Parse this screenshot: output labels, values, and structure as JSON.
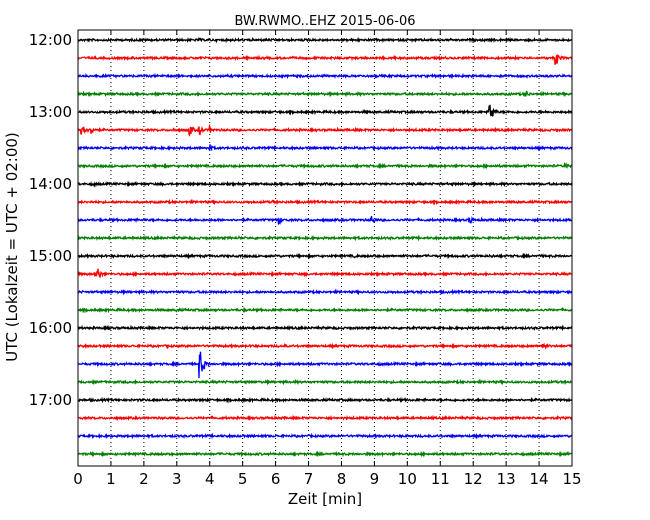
{
  "chart_data": {
    "type": "line",
    "title": "BW.RWMO..EHZ 2015-06-06",
    "xlabel": "Zeit  [min]",
    "ylabel": "UTC (Lokalzeit = UTC + 02:00)",
    "xlim": [
      0,
      15
    ],
    "x_ticks": [
      "0",
      "1",
      "2",
      "3",
      "4",
      "5",
      "6",
      "7",
      "8",
      "9",
      "10",
      "11",
      "12",
      "13",
      "14",
      "15"
    ],
    "y_tick_labels": [
      "12:00",
      "13:00",
      "14:00",
      "15:00",
      "16:00",
      "17:00"
    ],
    "grid": "vertical dotted",
    "colors": [
      "#000000",
      "#ff0000",
      "#0000ff",
      "#008000"
    ],
    "row_interval_min": 15,
    "start_time": "12:00",
    "traces": [
      {
        "start": "12:00",
        "color": "#000000",
        "events": [
          {
            "x": 3.7,
            "amp": 0.12
          }
        ]
      },
      {
        "start": "12:15",
        "color": "#ff0000",
        "events": [
          {
            "x": 14.5,
            "amp": 0.55
          },
          {
            "x": 6.7,
            "amp": 0.1
          },
          {
            "x": 9.6,
            "amp": 0.1
          }
        ]
      },
      {
        "start": "12:30",
        "color": "#0000ff",
        "events": []
      },
      {
        "start": "12:45",
        "color": "#008000",
        "events": [
          {
            "x": 13.6,
            "amp": 0.25
          }
        ]
      },
      {
        "start": "13:00",
        "color": "#000000",
        "events": [
          {
            "x": 12.5,
            "amp": 0.7
          },
          {
            "x": 8.7,
            "amp": 0.15
          }
        ]
      },
      {
        "start": "13:15",
        "color": "#ff0000",
        "events": [
          {
            "x": 0.1,
            "amp": 0.6
          },
          {
            "x": 0.4,
            "amp": 0.35
          },
          {
            "x": 3.4,
            "amp": 0.35
          },
          {
            "x": 3.7,
            "amp": 0.3
          },
          {
            "x": 4.0,
            "amp": 0.25
          },
          {
            "x": 2.9,
            "amp": 0.15
          }
        ]
      },
      {
        "start": "13:30",
        "color": "#0000ff",
        "events": [
          {
            "x": 4.0,
            "amp": 0.25
          },
          {
            "x": 5.0,
            "amp": 0.1
          }
        ]
      },
      {
        "start": "13:45",
        "color": "#008000",
        "events": [
          {
            "x": 14.8,
            "amp": 0.2
          },
          {
            "x": 5.3,
            "amp": 0.1
          }
        ]
      },
      {
        "start": "14:00",
        "color": "#000000",
        "events": [
          {
            "x": 0.5,
            "amp": 0.12
          }
        ]
      },
      {
        "start": "14:15",
        "color": "#ff0000",
        "events": [
          {
            "x": 5.9,
            "amp": 0.15
          }
        ]
      },
      {
        "start": "14:30",
        "color": "#0000ff",
        "events": [
          {
            "x": 6.1,
            "amp": 0.3
          },
          {
            "x": 8.9,
            "amp": 0.35
          },
          {
            "x": 11.9,
            "amp": 0.25
          },
          {
            "x": 1.7,
            "amp": 0.1
          }
        ]
      },
      {
        "start": "14:45",
        "color": "#008000",
        "events": [
          {
            "x": 4.9,
            "amp": 0.1
          }
        ]
      },
      {
        "start": "15:00",
        "color": "#000000",
        "events": [
          {
            "x": 8.4,
            "amp": 0.12
          },
          {
            "x": 12.6,
            "amp": 0.1
          }
        ]
      },
      {
        "start": "15:15",
        "color": "#ff0000",
        "events": [
          {
            "x": 0.55,
            "amp": 0.6
          },
          {
            "x": 6.9,
            "amp": 0.1
          }
        ]
      },
      {
        "start": "15:30",
        "color": "#0000ff",
        "events": []
      },
      {
        "start": "15:45",
        "color": "#008000",
        "events": [
          {
            "x": 3.0,
            "amp": 0.12
          },
          {
            "x": 5.0,
            "amp": 0.1
          }
        ]
      },
      {
        "start": "16:00",
        "color": "#000000",
        "events": [
          {
            "x": 0.9,
            "amp": 0.15
          }
        ]
      },
      {
        "start": "16:15",
        "color": "#ff0000",
        "events": [
          {
            "x": 14.1,
            "amp": 0.3
          },
          {
            "x": 2.7,
            "amp": 0.1
          },
          {
            "x": 5.3,
            "amp": 0.1
          },
          {
            "x": 6.3,
            "amp": 0.1
          }
        ]
      },
      {
        "start": "16:30",
        "color": "#0000ff",
        "events": [
          {
            "x": 3.7,
            "amp": 1.0
          },
          {
            "x": 9.2,
            "amp": 0.1
          }
        ]
      },
      {
        "start": "16:45",
        "color": "#008000",
        "events": []
      },
      {
        "start": "17:00",
        "color": "#000000",
        "events": [
          {
            "x": 9.8,
            "amp": 0.08
          }
        ]
      },
      {
        "start": "17:15",
        "color": "#ff0000",
        "events": []
      },
      {
        "start": "17:30",
        "color": "#0000ff",
        "events": [
          {
            "x": 1.6,
            "amp": 0.12
          }
        ]
      },
      {
        "start": "17:45",
        "color": "#008000",
        "events": []
      }
    ]
  }
}
